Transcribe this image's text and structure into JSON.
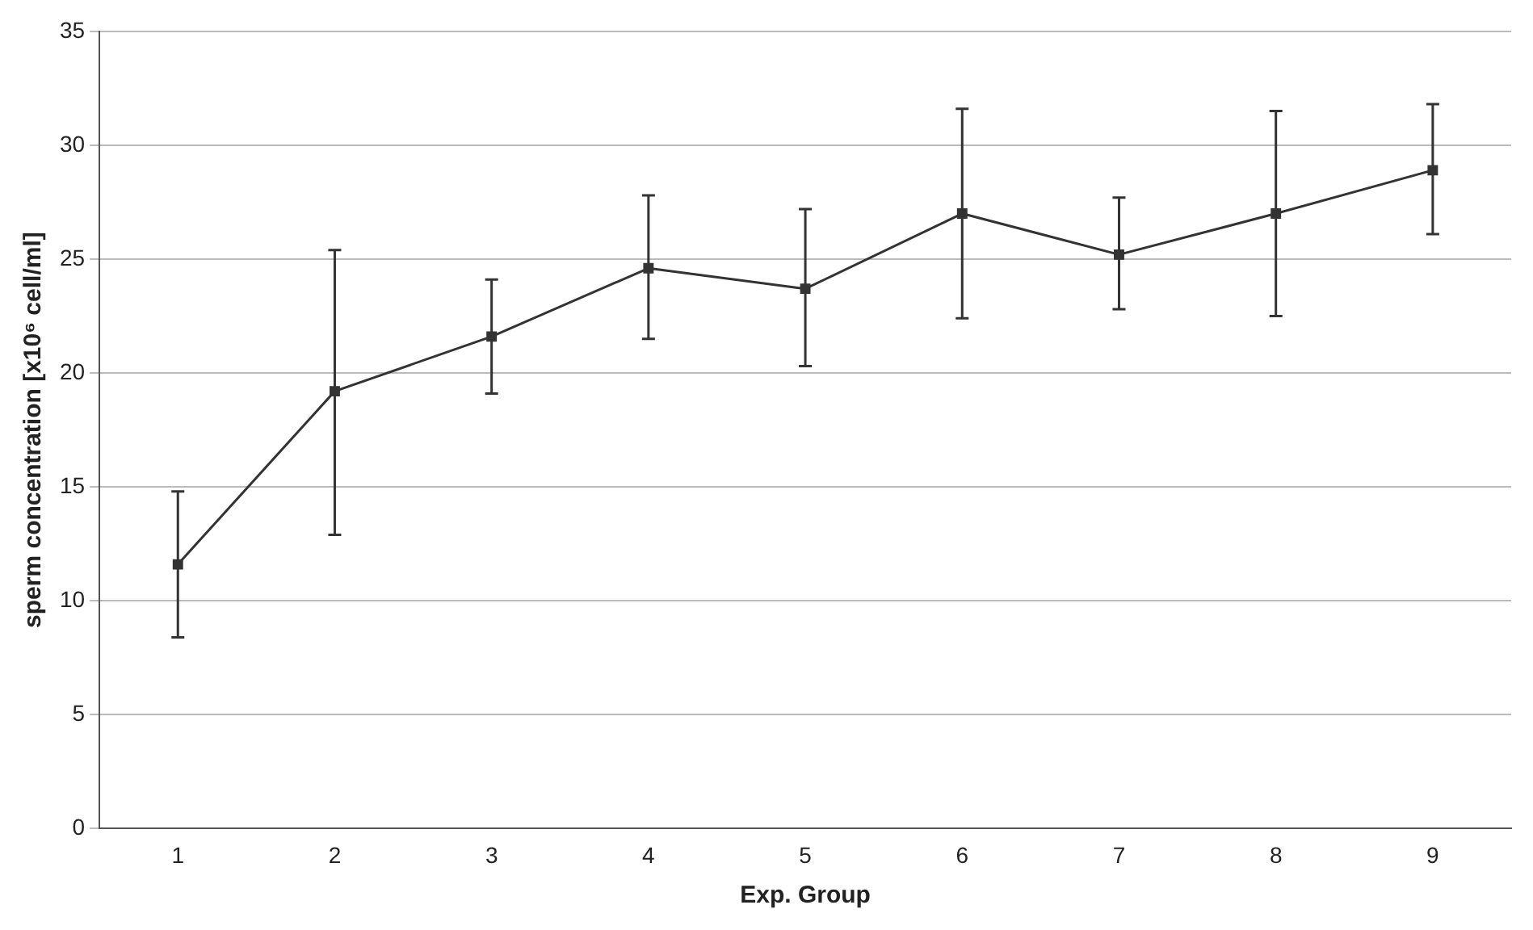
{
  "chart_data": {
    "type": "line",
    "xlabel": "Exp. Group",
    "ylabel": "sperm concentration [x10⁶ cell/ml]",
    "categories": [
      "1",
      "2",
      "3",
      "4",
      "5",
      "6",
      "7",
      "8",
      "9"
    ],
    "series": [
      {
        "color": "#333333",
        "values": [
          11.6,
          19.2,
          21.6,
          24.6,
          23.7,
          27.0,
          25.2,
          27.0,
          28.9
        ],
        "errors": [
          [
            8.4,
            14.8
          ],
          [
            12.9,
            25.4
          ],
          [
            19.1,
            24.1
          ],
          [
            21.5,
            27.8
          ],
          [
            20.3,
            27.2
          ],
          [
            22.4,
            31.6
          ],
          [
            22.8,
            27.7
          ],
          [
            22.5,
            31.5
          ],
          [
            26.1,
            31.8
          ]
        ]
      }
    ],
    "ylim": [
      0,
      35
    ],
    "yticks": [
      0,
      5,
      10,
      15,
      20,
      25,
      30,
      35
    ],
    "grid": "y",
    "marker": "square",
    "line_style": "solid",
    "legend": false
  }
}
